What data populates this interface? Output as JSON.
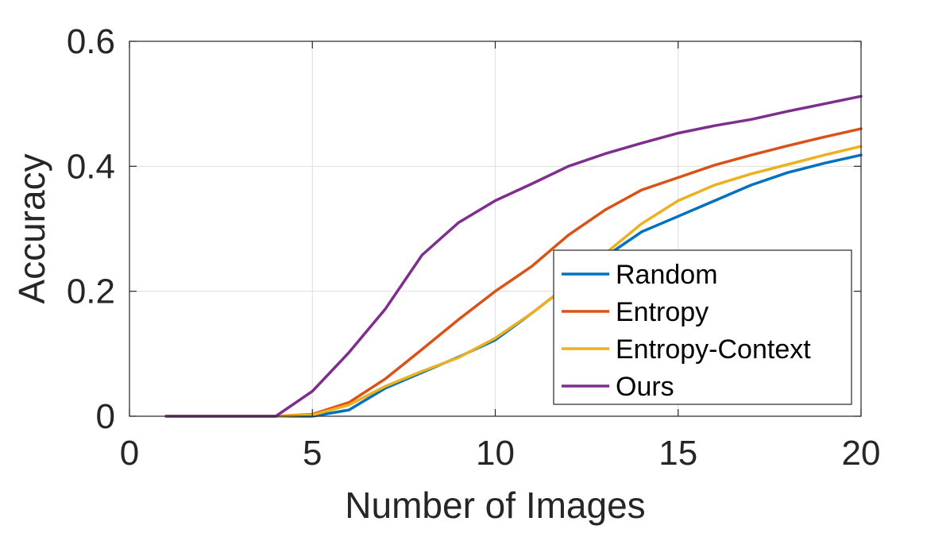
{
  "chart_data": {
    "type": "line",
    "xlabel": "Number of Images",
    "ylabel": "Accuracy",
    "xlim": [
      0,
      20
    ],
    "ylim": [
      0,
      0.6
    ],
    "x_ticks": [
      "0",
      "5",
      "10",
      "15",
      "20"
    ],
    "y_ticks": [
      "0",
      "0.2",
      "0.4",
      "0.6"
    ],
    "grid": true,
    "legend_position": "bottom-right",
    "x": [
      1,
      2,
      3,
      4,
      5,
      6,
      7,
      8,
      9,
      10,
      11,
      12,
      13,
      14,
      15,
      16,
      17,
      18,
      19,
      20
    ],
    "series": [
      {
        "name": "Random",
        "color": "#0072BD",
        "values": [
          0,
          0,
          0,
          0,
          0,
          0.01,
          0.045,
          0.07,
          0.095,
          0.122,
          0.165,
          0.21,
          0.255,
          0.295,
          0.32,
          0.345,
          0.37,
          0.39,
          0.405,
          0.418
        ]
      },
      {
        "name": "Entropy",
        "color": "#D95319",
        "values": [
          0,
          0,
          0,
          0,
          0.003,
          0.022,
          0.06,
          0.107,
          0.155,
          0.2,
          0.24,
          0.29,
          0.33,
          0.362,
          0.382,
          0.402,
          0.418,
          0.433,
          0.447,
          0.46
        ]
      },
      {
        "name": "Entropy-Context",
        "color": "#EDB120",
        "values": [
          0,
          0,
          0,
          0,
          0.002,
          0.018,
          0.048,
          0.072,
          0.094,
          0.125,
          0.165,
          0.21,
          0.26,
          0.308,
          0.345,
          0.37,
          0.388,
          0.403,
          0.418,
          0.432
        ]
      },
      {
        "name": "Ours",
        "color": "#7E2F8E",
        "values": [
          0,
          0,
          0,
          0,
          0.04,
          0.102,
          0.172,
          0.258,
          0.31,
          0.345,
          0.372,
          0.4,
          0.42,
          0.437,
          0.453,
          0.465,
          0.475,
          0.488,
          0.5,
          0.512
        ]
      }
    ]
  }
}
